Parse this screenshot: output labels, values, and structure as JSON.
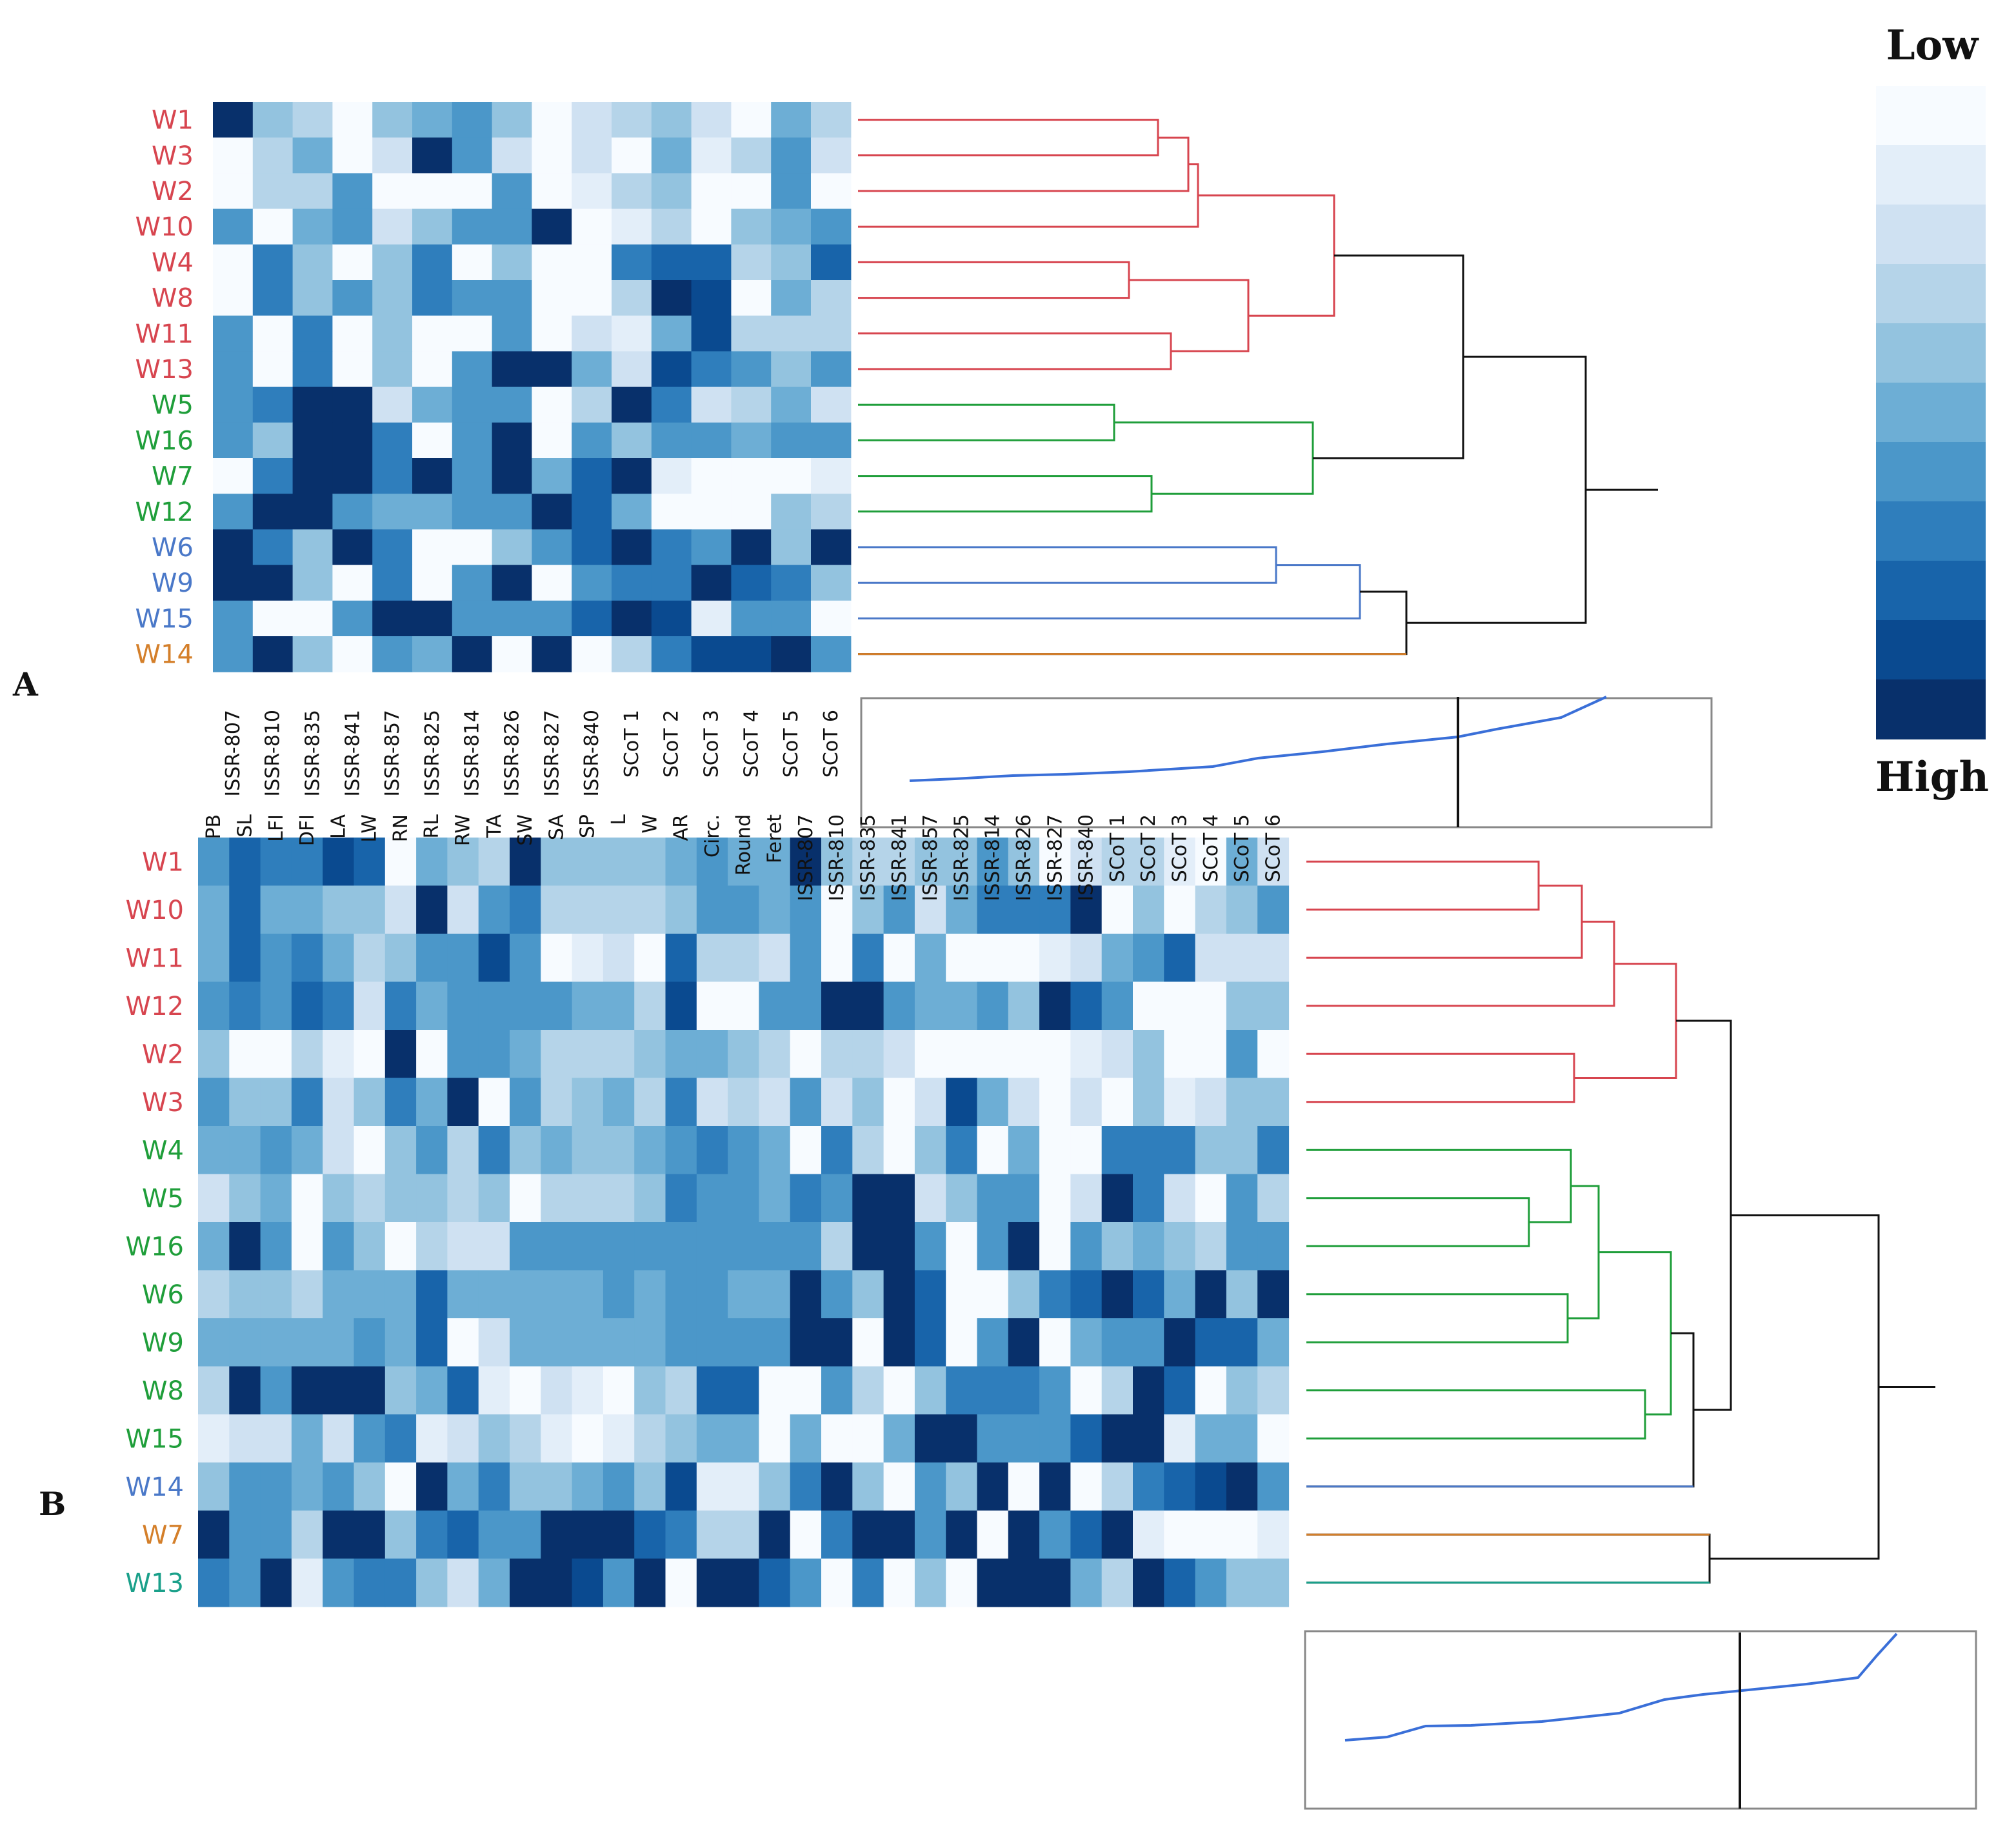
{
  "palette": [
    "#f7fbff",
    "#e3eef9",
    "#cfe1f2",
    "#b5d4e9",
    "#93c3df",
    "#6daed5",
    "#4b97c9",
    "#2f7ebc",
    "#1864aa",
    "#0a4a90",
    "#08306b"
  ],
  "group_colors": {
    "red": "#d7454f",
    "green": "#1f9e3a",
    "blue": "#4a78c8",
    "orange": "#d47f2a",
    "teal": "#1aa08a",
    "black": "#111111"
  },
  "legend": {
    "low_label": "Low",
    "high_label": "High"
  },
  "chart_data": [
    {
      "type": "heatmap",
      "panel": "A",
      "title": "",
      "row_labels": [
        "W1",
        "W3",
        "W2",
        "W10",
        "W4",
        "W8",
        "W11",
        "W13",
        "W5",
        "W16",
        "W7",
        "W12",
        "W6",
        "W9",
        "W15",
        "W14"
      ],
      "row_groups": [
        "red",
        "red",
        "red",
        "red",
        "red",
        "red",
        "red",
        "red",
        "green",
        "green",
        "green",
        "green",
        "blue",
        "blue",
        "blue",
        "orange"
      ],
      "col_labels": [
        "ISSR-807",
        "ISSR-810",
        "ISSR-835",
        "ISSR-841",
        "ISSR-857",
        "ISSR-825",
        "ISSR-814",
        "ISSR-826",
        "ISSR-827",
        "ISSR-840",
        "SCoT 1",
        "SCoT 2",
        "SCoT 3",
        "SCoT 4",
        "SCoT 5",
        "SCoT 6"
      ],
      "values": [
        [
          10,
          4,
          3,
          0,
          4,
          5,
          6,
          4,
          0,
          2,
          3,
          4,
          2,
          0,
          5,
          3
        ],
        [
          0,
          3,
          5,
          0,
          2,
          10,
          6,
          2,
          0,
          2,
          0,
          5,
          1,
          3,
          6,
          2
        ],
        [
          0,
          3,
          3,
          6,
          0,
          0,
          0,
          6,
          0,
          1,
          3,
          4,
          0,
          0,
          6,
          0
        ],
        [
          6,
          0,
          5,
          6,
          2,
          4,
          6,
          6,
          10,
          0,
          1,
          3,
          0,
          4,
          5,
          6
        ],
        [
          0,
          7,
          4,
          0,
          4,
          7,
          0,
          4,
          0,
          0,
          7,
          8,
          8,
          3,
          4,
          8
        ],
        [
          0,
          7,
          4,
          6,
          4,
          7,
          6,
          6,
          0,
          0,
          3,
          10,
          9,
          0,
          5,
          3
        ],
        [
          6,
          0,
          7,
          0,
          4,
          0,
          0,
          6,
          0,
          2,
          1,
          5,
          9,
          3,
          3,
          3
        ],
        [
          6,
          0,
          7,
          0,
          4,
          0,
          6,
          10,
          10,
          5,
          2,
          9,
          7,
          6,
          4,
          6
        ],
        [
          6,
          7,
          10,
          10,
          2,
          5,
          6,
          6,
          0,
          3,
          10,
          7,
          2,
          3,
          5,
          2
        ],
        [
          6,
          4,
          10,
          10,
          7,
          0,
          6,
          10,
          0,
          6,
          4,
          6,
          6,
          5,
          6,
          6
        ],
        [
          0,
          7,
          10,
          10,
          7,
          10,
          6,
          10,
          5,
          8,
          10,
          1,
          0,
          0,
          0,
          1
        ],
        [
          6,
          10,
          10,
          6,
          5,
          5,
          6,
          6,
          10,
          8,
          5,
          0,
          0,
          0,
          4,
          3
        ],
        [
          10,
          7,
          4,
          10,
          7,
          0,
          0,
          4,
          6,
          8,
          10,
          7,
          6,
          10,
          4,
          10
        ],
        [
          10,
          10,
          4,
          0,
          7,
          0,
          6,
          10,
          0,
          6,
          7,
          7,
          10,
          8,
          7,
          4
        ],
        [
          6,
          0,
          0,
          6,
          10,
          10,
          6,
          6,
          6,
          8,
          10,
          9,
          1,
          6,
          6,
          0
        ],
        [
          6,
          10,
          4,
          0,
          6,
          5,
          10,
          0,
          10,
          0,
          3,
          7,
          9,
          9,
          10,
          6
        ]
      ]
    },
    {
      "type": "heatmap",
      "panel": "B",
      "title": "",
      "row_labels": [
        "W1",
        "W10",
        "W11",
        "W12",
        "W2",
        "W3",
        "W4",
        "W5",
        "W16",
        "W6",
        "W9",
        "W8",
        "W15",
        "W14",
        "W7",
        "W13"
      ],
      "row_groups": [
        "red",
        "red",
        "red",
        "red",
        "red",
        "red",
        "green",
        "green",
        "green",
        "green",
        "green",
        "green",
        "green",
        "blue",
        "orange",
        "teal"
      ],
      "col_labels": [
        "PB",
        "SL",
        "LFI",
        "DFI",
        "LA",
        "LW",
        "RN",
        "RL",
        "RW",
        "TA",
        "SW",
        "SA",
        "SP",
        "L",
        "W",
        "AR",
        "Circ.",
        "Round",
        "Feret",
        "ISSR-807",
        "ISSR-810",
        "ISSR-835",
        "ISSR-841",
        "ISSR-857",
        "ISSR-825",
        "ISSR-814",
        "ISSR-826",
        "ISSR-827",
        "ISSR-840",
        "SCoT 1",
        "SCoT 2",
        "SCoT 3",
        "SCoT 4",
        "SCoT 5",
        "SCoT 6"
      ],
      "values": [
        [
          6,
          8,
          7,
          7,
          9,
          8,
          0,
          5,
          4,
          3,
          10,
          4,
          4,
          4,
          4,
          5,
          6,
          5,
          5,
          10,
          4,
          3,
          3,
          4,
          4,
          6,
          4,
          0,
          2,
          3,
          3,
          1,
          0,
          5,
          2
        ],
        [
          5,
          8,
          5,
          5,
          4,
          4,
          2,
          10,
          2,
          6,
          7,
          3,
          3,
          3,
          3,
          4,
          6,
          6,
          5,
          6,
          0,
          4,
          6,
          2,
          5,
          7,
          7,
          7,
          10,
          0,
          4,
          0,
          3,
          4,
          6
        ],
        [
          5,
          8,
          6,
          7,
          5,
          3,
          4,
          6,
          6,
          9,
          6,
          0,
          1,
          2,
          0,
          8,
          3,
          3,
          2,
          6,
          0,
          7,
          0,
          5,
          0,
          0,
          0,
          1,
          2,
          5,
          6,
          8,
          2,
          2,
          2
        ],
        [
          6,
          7,
          6,
          8,
          7,
          2,
          7,
          5,
          6,
          6,
          6,
          6,
          5,
          5,
          3,
          9,
          0,
          0,
          6,
          6,
          10,
          10,
          6,
          5,
          5,
          6,
          4,
          10,
          8,
          6,
          0,
          0,
          0,
          4,
          4
        ],
        [
          4,
          0,
          0,
          3,
          1,
          0,
          10,
          0,
          6,
          6,
          5,
          3,
          3,
          3,
          4,
          5,
          5,
          4,
          3,
          0,
          3,
          3,
          2,
          0,
          0,
          0,
          0,
          0,
          1,
          2,
          4,
          0,
          0,
          6,
          0
        ],
        [
          6,
          4,
          4,
          7,
          2,
          4,
          7,
          5,
          10,
          0,
          6,
          3,
          4,
          5,
          3,
          7,
          2,
          3,
          2,
          6,
          2,
          4,
          0,
          2,
          9,
          5,
          2,
          0,
          2,
          0,
          4,
          1,
          2,
          4,
          4
        ],
        [
          5,
          5,
          6,
          5,
          2,
          0,
          4,
          6,
          3,
          7,
          4,
          5,
          4,
          4,
          5,
          6,
          7,
          6,
          5,
          0,
          7,
          3,
          0,
          4,
          7,
          0,
          5,
          0,
          0,
          7,
          7,
          7,
          4,
          4,
          7
        ],
        [
          2,
          4,
          5,
          0,
          4,
          3,
          4,
          4,
          3,
          4,
          0,
          3,
          3,
          3,
          4,
          7,
          6,
          6,
          5,
          7,
          6,
          10,
          10,
          2,
          4,
          6,
          6,
          0,
          2,
          10,
          7,
          2,
          0,
          6,
          3
        ],
        [
          5,
          10,
          6,
          0,
          6,
          4,
          0,
          3,
          2,
          2,
          6,
          6,
          6,
          6,
          6,
          6,
          6,
          6,
          6,
          6,
          3,
          10,
          10,
          6,
          0,
          6,
          10,
          0,
          6,
          4,
          5,
          4,
          3,
          6,
          6
        ],
        [
          3,
          4,
          4,
          3,
          5,
          5,
          5,
          8,
          5,
          5,
          5,
          5,
          5,
          6,
          5,
          6,
          6,
          5,
          5,
          10,
          6,
          4,
          10,
          8,
          0,
          0,
          4,
          7,
          8,
          10,
          8,
          5,
          10,
          4,
          10
        ],
        [
          5,
          5,
          5,
          5,
          5,
          6,
          5,
          8,
          0,
          2,
          5,
          5,
          5,
          5,
          5,
          6,
          6,
          6,
          6,
          10,
          10,
          0,
          10,
          8,
          0,
          6,
          10,
          0,
          5,
          6,
          6,
          10,
          8,
          8,
          5
        ],
        [
          3,
          10,
          6,
          10,
          10,
          10,
          4,
          5,
          8,
          1,
          0,
          2,
          1,
          0,
          4,
          3,
          8,
          8,
          0,
          0,
          6,
          3,
          0,
          4,
          7,
          7,
          7,
          6,
          0,
          3,
          10,
          8,
          0,
          4,
          3
        ],
        [
          1,
          2,
          2,
          5,
          2,
          6,
          7,
          1,
          2,
          4,
          3,
          1,
          0,
          1,
          3,
          4,
          5,
          5,
          0,
          5,
          0,
          0,
          5,
          10,
          10,
          6,
          6,
          6,
          8,
          10,
          10,
          1,
          5,
          5,
          0
        ],
        [
          4,
          6,
          6,
          5,
          6,
          4,
          0,
          10,
          5,
          7,
          4,
          4,
          5,
          6,
          4,
          9,
          1,
          1,
          4,
          7,
          10,
          4,
          0,
          6,
          4,
          10,
          0,
          10,
          0,
          3,
          7,
          8,
          9,
          10,
          6
        ],
        [
          10,
          6,
          6,
          3,
          10,
          10,
          4,
          7,
          8,
          6,
          6,
          10,
          10,
          10,
          8,
          7,
          3,
          3,
          10,
          0,
          7,
          10,
          10,
          6,
          10,
          0,
          10,
          6,
          8,
          10,
          1,
          0,
          0,
          0,
          1
        ],
        [
          7,
          6,
          10,
          1,
          6,
          7,
          7,
          4,
          2,
          5,
          10,
          10,
          9,
          6,
          10,
          0,
          10,
          10,
          8,
          6,
          0,
          7,
          0,
          4,
          0,
          10,
          10,
          10,
          5,
          3,
          10,
          8,
          6,
          4,
          4
        ]
      ]
    }
  ]
}
